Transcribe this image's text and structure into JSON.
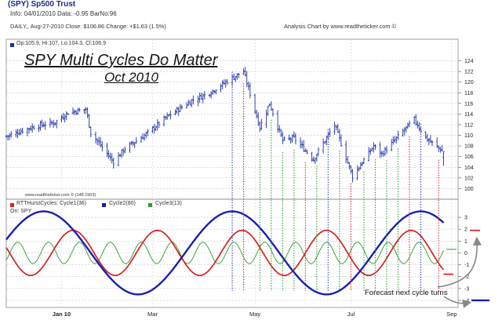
{
  "header": {
    "title": "(SPY) Sp500 Trust",
    "info": "Info: 04/01/2010 Data: -0.95 BarNo:96",
    "stats": "DAILY,, Aug-27-2010  Close: $106.86  Change: +$1.63  (1.5%)",
    "credit": "Analysis Chart by www.readtheticker.com ©"
  },
  "price_panel": {
    "ohlc_label": "Op:105.9, Hi:107, Lo:104.3, Cl:106.9",
    "watermark": "www.readtheticker.com © (148.1503)"
  },
  "annotation": {
    "line1": "SPY Multi Cycles Do Matter",
    "line2": "Oct 2010"
  },
  "cycle_panel": {
    "legend": [
      "RTTHurstCycles: Cycle1(36)",
      "Cycle2(80)",
      "Cycle3(13)"
    ],
    "on_label": "On: SPY",
    "forecast_label": "Forecast next cycle turns"
  },
  "colors": {
    "bars": "#1a2fa8",
    "cycle1": "#d62020",
    "cycle2": "#1a1fb0",
    "cycle3": "#2e9a2e",
    "grid": "#c8c8c8",
    "dot_blue": "#2233cc",
    "dot_red": "#dd2222",
    "dot_green": "#229922"
  },
  "chart_data": [
    {
      "type": "ohlc",
      "name": "SPY daily price",
      "x_range": [
        "2009-12-01",
        "2010-09-03"
      ],
      "ylim": [
        98,
        126
      ],
      "yticks": [
        100,
        102,
        104,
        106,
        108,
        110,
        112,
        114,
        116,
        118,
        120,
        122,
        124
      ],
      "grid": true,
      "last_bar": {
        "date": "2010-08-27",
        "open": 105.9,
        "high": 107,
        "low": 104.3,
        "close": 106.9
      },
      "price_path": [
        [
          "2009-12-01",
          109.8
        ],
        [
          "2009-12-10",
          110.8
        ],
        [
          "2009-12-20",
          111.8
        ],
        [
          "2009-12-31",
          112.4
        ],
        [
          "2010-01-08",
          114.3
        ],
        [
          "2010-01-19",
          114.9
        ],
        [
          "2010-01-22",
          110.5
        ],
        [
          "2010-02-05",
          105.0
        ],
        [
          "2010-02-12",
          107.5
        ],
        [
          "2010-02-25",
          110.2
        ],
        [
          "2010-03-10",
          113.5
        ],
        [
          "2010-03-25",
          116.5
        ],
        [
          "2010-04-05",
          118.0
        ],
        [
          "2010-04-15",
          120.0
        ],
        [
          "2010-04-23",
          121.5
        ],
        [
          "2010-04-26",
          122.0
        ],
        [
          "2010-05-06",
          111.5
        ],
        [
          "2010-05-12",
          116.0
        ],
        [
          "2010-05-20",
          109.0
        ],
        [
          "2010-05-27",
          109.5
        ],
        [
          "2010-06-08",
          105.5
        ],
        [
          "2010-06-21",
          112.0
        ],
        [
          "2010-07-02",
          102.3
        ],
        [
          "2010-07-15",
          108.0
        ],
        [
          "2010-07-20",
          106.5
        ],
        [
          "2010-08-09",
          113.0
        ],
        [
          "2010-08-16",
          109.5
        ],
        [
          "2010-08-27",
          106.9
        ]
      ]
    },
    {
      "type": "line",
      "name": "Hurst cycles",
      "ylim": [
        -4.6,
        3.6
      ],
      "yticks": [
        -4,
        -3,
        -2,
        -1,
        0,
        1,
        2,
        3
      ],
      "xticks": [
        "Jan 10",
        "Mar",
        "May",
        "Jul",
        "Sep"
      ],
      "xtick_dates": [
        "2010-01-04",
        "2010-03-01",
        "2010-05-03",
        "2010-07-01",
        "2010-09-01"
      ],
      "grid": true,
      "series": [
        {
          "name": "Cycle1(36)",
          "amplitude": 1.9,
          "period_days": 52,
          "phase_peak": "2010-04-25",
          "forecast_level": -1.8,
          "forecast_turn": 1.9
        },
        {
          "name": "Cycle2(80)",
          "amplitude": 3.5,
          "period_days": 116,
          "phase_peak": "2010-04-19",
          "forecast_level": -4.0,
          "forecast_turn": -4.0
        },
        {
          "name": "Cycle3(13)",
          "amplitude": 0.9,
          "period_days": 19,
          "phase_peak": "2010-04-20",
          "forecast_level": 0.3
        }
      ],
      "turn_markers": [
        {
          "date": "2010-04-19",
          "color": "blue"
        },
        {
          "date": "2010-04-26",
          "color": "red"
        },
        {
          "date": "2010-05-06",
          "color": "green"
        },
        {
          "date": "2010-05-13",
          "color": "green"
        },
        {
          "date": "2010-05-20",
          "color": "green"
        },
        {
          "date": "2010-05-27",
          "color": "green"
        },
        {
          "date": "2010-06-03",
          "color": "red"
        },
        {
          "date": "2010-06-10",
          "color": "green"
        },
        {
          "date": "2010-06-17",
          "color": "blue"
        },
        {
          "date": "2010-06-24",
          "color": "green"
        },
        {
          "date": "2010-07-01",
          "color": "red"
        },
        {
          "date": "2010-07-09",
          "color": "green"
        },
        {
          "date": "2010-07-16",
          "color": "green"
        },
        {
          "date": "2010-07-23",
          "color": "green"
        },
        {
          "date": "2010-07-30",
          "color": "green"
        },
        {
          "date": "2010-08-06",
          "color": "red"
        },
        {
          "date": "2010-08-13",
          "color": "blue"
        },
        {
          "date": "2010-08-24",
          "color": "red"
        }
      ]
    }
  ]
}
